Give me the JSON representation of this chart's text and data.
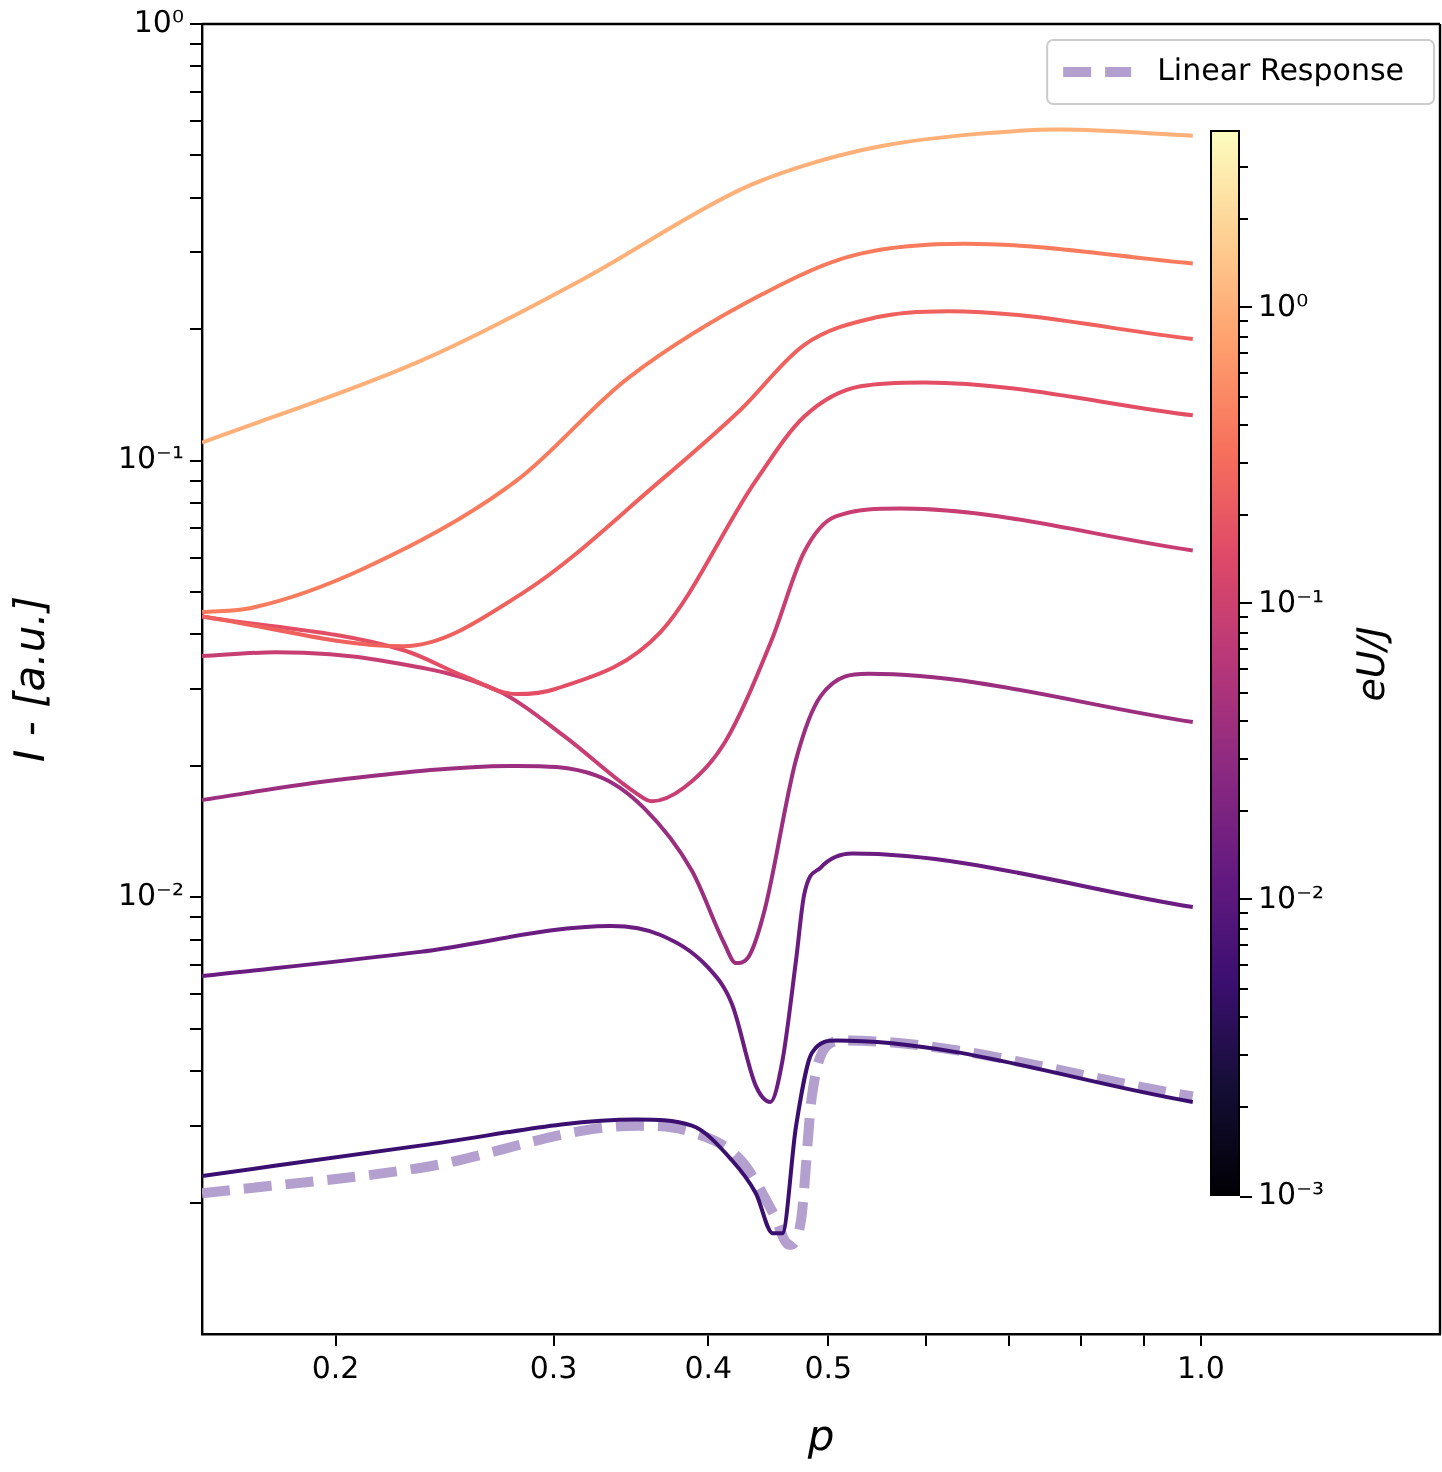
{
  "chart_data": {
    "type": "line",
    "xlabel": "p",
    "ylabel": "I - [a.u.]",
    "clabel": "eU/J",
    "log": "xy",
    "grid": false,
    "legend": "top right",
    "marker": "none",
    "xlim": [
      0.156,
      1.56
    ],
    "xticks": [
      0.2,
      0.3,
      0.4,
      0.5,
      {
        "value": 0.6,
        "label": null
      },
      {
        "value": 0.7,
        "label": null
      },
      {
        "value": 0.8,
        "label": null
      },
      {
        "value": 0.9,
        "label": null
      },
      {
        "value": 1,
        "label": "1.0"
      }
    ],
    "ylim": [
      0.001,
      1
    ],
    "yticks": [
      {
        "value": 0.002,
        "label": null
      },
      {
        "value": 0.003,
        "label": null
      },
      {
        "value": 0.004,
        "label": null
      },
      {
        "value": 0.005,
        "label": null
      },
      {
        "value": 0.006,
        "label": null
      },
      {
        "value": 0.007,
        "label": null
      },
      {
        "value": 0.008,
        "label": null
      },
      {
        "value": 0.009,
        "label": null
      },
      {
        "value": 0.01,
        "label": "10⁻²"
      },
      {
        "value": 0.02,
        "label": null
      },
      {
        "value": 0.03,
        "label": null
      },
      {
        "value": 0.04,
        "label": null
      },
      {
        "value": 0.05,
        "label": null
      },
      {
        "value": 0.06,
        "label": null
      },
      {
        "value": 0.07,
        "label": null
      },
      {
        "value": 0.08,
        "label": null
      },
      {
        "value": 0.09,
        "label": null
      },
      {
        "value": 0.1,
        "label": "10⁻¹"
      },
      {
        "value": 0.2,
        "label": null
      },
      {
        "value": 0.3,
        "label": null
      },
      {
        "value": 0.4,
        "label": null
      },
      {
        "value": 0.5,
        "label": null
      },
      {
        "value": 0.6,
        "label": null
      },
      {
        "value": 0.7,
        "label": null
      },
      {
        "value": 0.8,
        "label": null
      },
      {
        "value": 0.9,
        "label": null
      },
      {
        "value": 1,
        "label": "10⁰"
      }
    ],
    "annotations": [
      "10⁻³",
      "10⁻²",
      "10⁻¹",
      "10⁰"
    ],
    "series": [
      {
        "color": "#feb078",
        "x": [
          0.156,
          0.234,
          0.315,
          0.425,
          0.478,
          0.555,
          0.664,
          0.77,
          0.985
        ],
        "values": [
          0.11,
          0.169,
          0.258,
          0.418,
          0.474,
          0.527,
          0.561,
          0.573,
          0.555
        ]
      },
      {
        "color": "#f97b5d",
        "x": [
          0.156,
          0.171,
          0.211,
          0.28,
          0.345,
          0.471,
          0.531,
          0.644,
          0.985
        ],
        "values": [
          0.045,
          0.046,
          0.0567,
          0.09,
          0.155,
          0.263,
          0.298,
          0.314,
          0.283
        ]
      },
      {
        "color": "#f0605d",
        "x": [
          0.156,
          0.227,
          0.284,
          0.366,
          0.425,
          0.478,
          0.547,
          0.625,
          0.985
        ],
        "values": [
          0.044,
          0.0376,
          0.05,
          0.09,
          0.131,
          0.184,
          0.213,
          0.22,
          0.19
        ]
      },
      {
        "color": "#e34e65",
        "x": [
          0.156,
          0.227,
          0.254,
          0.28,
          0.301,
          0.366,
          0.437,
          0.478,
          0.531,
          0.598,
          0.985
        ],
        "values": [
          0.044,
          0.0368,
          0.0321,
          0.0292,
          0.03,
          0.0405,
          0.09,
          0.126,
          0.148,
          0.151,
          0.127
        ]
      },
      {
        "color": "#c83e73",
        "x": [
          0.156,
          0.179,
          0.217,
          0.272,
          0.306,
          0.35,
          0.36,
          0.382,
          0.412,
          0.45,
          0.478,
          0.507,
          0.572,
          0.985
        ],
        "values": [
          0.0357,
          0.0364,
          0.0349,
          0.0295,
          0.0234,
          0.0173,
          0.0166,
          0.0178,
          0.0225,
          0.0388,
          0.0617,
          0.0745,
          0.0777,
          0.0623
        ]
      },
      {
        "color": "#9c2e7f",
        "x": [
          0.156,
          0.201,
          0.28,
          0.325,
          0.355,
          0.388,
          0.412,
          0.421,
          0.431,
          0.444,
          0.471,
          0.493,
          0.539,
          0.985
        ],
        "values": [
          0.0167,
          0.0186,
          0.02,
          0.019,
          0.016,
          0.0115,
          0.00785,
          0.00707,
          0.0073,
          0.0093,
          0.0207,
          0.0289,
          0.0325,
          0.0252
        ]
      },
      {
        "color": "#6a1c81",
        "x": [
          0.156,
          0.234,
          0.334,
          0.366,
          0.4,
          0.418,
          0.437,
          0.449,
          0.459,
          0.471,
          0.478,
          0.493,
          0.523,
          0.985
        ],
        "values": [
          0.0066,
          0.0075,
          0.0086,
          0.0082,
          0.0069,
          0.0057,
          0.0037,
          0.0034,
          0.0042,
          0.0072,
          0.0101,
          0.0117,
          0.0126,
          0.0095
        ]
      },
      {
        "color": "#3b0f70",
        "x": [
          0.156,
          0.234,
          0.35,
          0.388,
          0.418,
          0.437,
          0.451,
          0.459,
          0.471,
          0.485,
          0.507,
          0.985
        ],
        "values": [
          0.0023,
          0.0027,
          0.0031,
          0.003,
          0.0025,
          0.0021,
          0.0017,
          0.0017,
          0.003,
          0.0044,
          0.0047,
          0.0034
        ]
      },
      {
        "name": "Linear Response",
        "color": "#b3a0cf",
        "line_style": "dashed",
        "x": [
          0.156,
          0.234,
          0.35,
          0.388,
          0.425,
          0.451,
          0.465,
          0.475,
          0.485,
          0.5,
          0.515,
          0.985
        ],
        "values": [
          0.0021,
          0.0024,
          0.003,
          0.0029,
          0.0025,
          0.0019,
          0.0016,
          0.0018,
          0.0035,
          0.0046,
          0.0047,
          0.0035
        ]
      }
    ]
  }
}
